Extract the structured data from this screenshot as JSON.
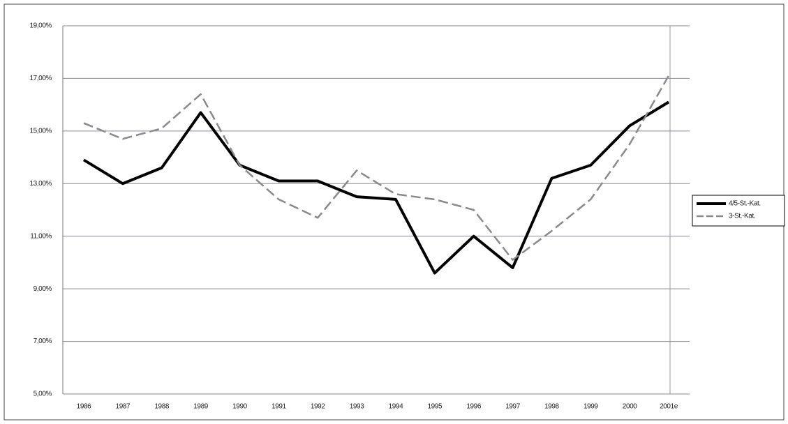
{
  "chart_data": {
    "type": "line",
    "categories": [
      "1986",
      "1987",
      "1988",
      "1989",
      "1990",
      "1991",
      "1992",
      "1993",
      "1994",
      "1995",
      "1996",
      "1997",
      "1998",
      "1999",
      "2000",
      "2001e"
    ],
    "series": [
      {
        "name": "4/5-St.-Kat.",
        "color": "#000000",
        "dash": false,
        "values": [
          13.9,
          13.0,
          13.6,
          15.7,
          13.7,
          13.1,
          13.1,
          12.5,
          12.4,
          9.6,
          11.0,
          9.8,
          13.2,
          13.7,
          15.2,
          16.1
        ]
      },
      {
        "name": "3-St.-Kat.",
        "color": "#8a8a8a",
        "dash": true,
        "values": [
          15.3,
          14.7,
          15.1,
          16.4,
          13.7,
          12.4,
          11.7,
          13.5,
          12.6,
          12.4,
          12.0,
          10.1,
          11.2,
          12.4,
          14.5,
          17.1
        ]
      }
    ],
    "ylim": [
      5,
      19
    ],
    "yticks": [
      {
        "value": 5,
        "label": "5,00%"
      },
      {
        "value": 7,
        "label": "7,00%"
      },
      {
        "value": 9,
        "label": "9,00%"
      },
      {
        "value": 11,
        "label": "11,00%"
      },
      {
        "value": 13,
        "label": "13,00%"
      },
      {
        "value": 15,
        "label": "15,00%"
      },
      {
        "value": 17,
        "label": "17,00%"
      },
      {
        "value": 19,
        "label": "19,00%"
      }
    ],
    "grid": true,
    "legend": "right"
  }
}
